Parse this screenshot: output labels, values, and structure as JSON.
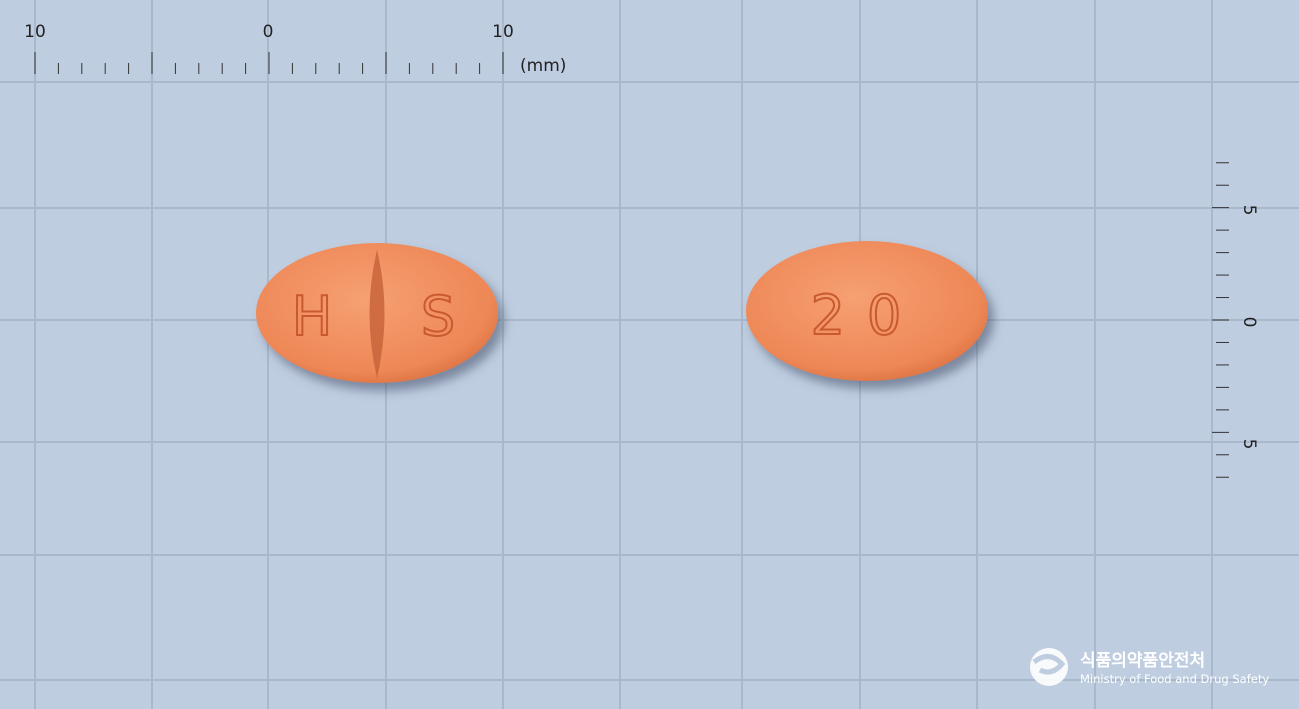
{
  "ruler": {
    "top_labels": [
      "10",
      "0",
      "10"
    ],
    "unit": "(mm)",
    "side_labels": [
      "5",
      "0",
      "5"
    ]
  },
  "pills": [
    {
      "imprint": [
        "H",
        "S"
      ]
    },
    {
      "imprint": "20"
    }
  ],
  "logo": {
    "korean": "식품의약품안전처",
    "english": "Ministry of Food and Drug Safety"
  }
}
